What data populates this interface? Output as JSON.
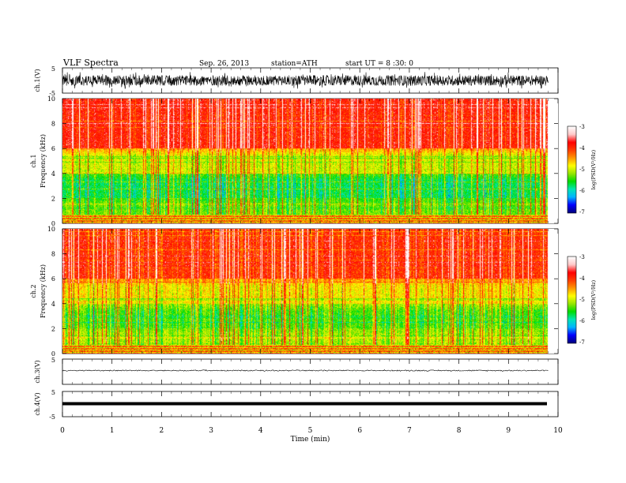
{
  "header": {
    "title": "VLF  Spectra",
    "date": "Sep. 26, 2013",
    "station": "station=ATH",
    "start_time": "start  UT  =   8  :30: 0"
  },
  "chart_data": [
    {
      "type": "line",
      "ylabel": "ch.1(V)",
      "ylim": [
        -5,
        5
      ],
      "y_ticks": [
        "5",
        "-5"
      ],
      "signal": "noisy waveform, amplitude about 2.5 V peak around 0",
      "xlim": [
        0,
        10
      ]
    },
    {
      "type": "heatmap",
      "ylabel_top": "ch.1",
      "ylabel": "Frequency  (kHz)",
      "ylim": [
        0,
        10
      ],
      "y_ticks": [
        "0",
        "2",
        "4",
        "6",
        "8",
        "10"
      ],
      "xlim": [
        0,
        10
      ],
      "data_extent_min": 9.8,
      "colorbar": {
        "label": "log(PSD(V²/Hz)",
        "range": [
          -7,
          -3
        ],
        "ticks": [
          "-3",
          "-4",
          "-5",
          "-6",
          "-7"
        ]
      },
      "frequency_profile_kHz": [
        {
          "band": [
            0,
            0.5
          ],
          "log_psd": -4.0
        },
        {
          "band": [
            0.5,
            2
          ],
          "log_psd": -5.3
        },
        {
          "band": [
            2,
            4
          ],
          "log_psd": -5.7
        },
        {
          "band": [
            4,
            6
          ],
          "log_psd": -5.0
        },
        {
          "band": [
            6,
            10
          ],
          "log_psd": -3.9
        }
      ]
    },
    {
      "type": "heatmap",
      "ylabel_top": "ch.2",
      "ylabel": "Frequency  (kHz)",
      "ylim": [
        0,
        10
      ],
      "y_ticks": [
        "0",
        "2",
        "4",
        "6",
        "8",
        "10"
      ],
      "xlim": [
        0,
        10
      ],
      "data_extent_min": 9.8,
      "colorbar": {
        "label": "log(PSD(V²/Hz)",
        "range": [
          -7,
          -3
        ],
        "ticks": [
          "-3",
          "-4",
          "-5",
          "-6",
          "-7"
        ]
      },
      "frequency_profile_kHz": [
        {
          "band": [
            0,
            0.5
          ],
          "log_psd": -4.0
        },
        {
          "band": [
            0.5,
            2
          ],
          "log_psd": -5.1
        },
        {
          "band": [
            2,
            4
          ],
          "log_psd": -5.4
        },
        {
          "band": [
            4,
            6
          ],
          "log_psd": -4.8
        },
        {
          "band": [
            6,
            10
          ],
          "log_psd": -4.0
        }
      ]
    },
    {
      "type": "line",
      "ylabel": "ch.3(V)",
      "ylim": [
        -5,
        5
      ],
      "y_ticks": [
        "5"
      ],
      "signal": "near-flat trace around 0 V",
      "xlim": [
        0,
        10
      ]
    },
    {
      "type": "line",
      "ylabel": "ch.4(V)",
      "ylim": [
        -5,
        5
      ],
      "y_ticks": [
        "5",
        "-5"
      ],
      "signal": "thick flat trace at about 0 V",
      "xlim": [
        0,
        10
      ]
    }
  ],
  "x_axis": {
    "label": "Time  (min)",
    "range": [
      0,
      10
    ],
    "ticks": [
      "0",
      "1",
      "2",
      "3",
      "4",
      "5",
      "6",
      "7",
      "8",
      "9",
      "10"
    ]
  },
  "colors": {
    "cmap": [
      "#000080",
      "#0000ff",
      "#00b4ff",
      "#00e6b4",
      "#00dc00",
      "#96e600",
      "#ffff00",
      "#ff9600",
      "#ff3c00",
      "#ff0000",
      "#ffc8c8",
      "#ffffff"
    ]
  }
}
